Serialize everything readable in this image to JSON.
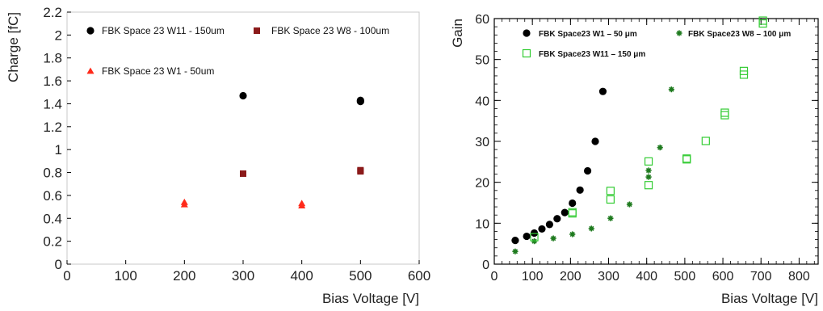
{
  "chart_data": [
    {
      "type": "scatter",
      "title": "",
      "xlabel": "Bias Voltage [V]",
      "ylabel": "Charge [fC]",
      "xlim": [
        0,
        600
      ],
      "ylim": [
        0,
        2.2
      ],
      "xticks": [
        0,
        100,
        200,
        300,
        400,
        500,
        600
      ],
      "yticks": [
        0,
        0.2,
        0.4,
        0.6,
        0.8,
        1,
        1.2,
        1.4,
        1.6,
        1.8,
        2,
        2.2
      ],
      "x_tick_labels": [
        "0",
        "100",
        "200",
        "300",
        "400",
        "500",
        "600"
      ],
      "y_tick_labels": [
        "0",
        "0.2",
        "0.4",
        "0.6",
        "0.8",
        "1",
        "1.2",
        "1.4",
        "1.6",
        "1.8",
        "2",
        "2.2"
      ],
      "grid": false,
      "legend_placement": "top",
      "series": [
        {
          "name": "FBK Space 23 W11 - 150um",
          "marker": "circle",
          "color": "#000000",
          "points": [
            [
              300,
              1.47
            ],
            [
              500,
              1.42
            ],
            [
              500,
              1.43
            ]
          ]
        },
        {
          "name": "FBK Space 23 W8 - 100um",
          "marker": "square",
          "color": "#8b1a1a",
          "points": [
            [
              300,
              0.79
            ],
            [
              500,
              0.81
            ],
            [
              500,
              0.82
            ]
          ]
        },
        {
          "name": "FBK Space 23 W1 - 50um",
          "marker": "triangle",
          "color": "#ff2a1a",
          "points": [
            [
              200,
              0.52
            ],
            [
              200,
              0.54
            ],
            [
              400,
              0.51
            ],
            [
              400,
              0.53
            ]
          ]
        }
      ]
    },
    {
      "type": "scatter",
      "title": "",
      "xlabel": "Bias Voltage [V]",
      "ylabel": "Gain",
      "xlim": [
        0,
        850
      ],
      "ylim": [
        0,
        60
      ],
      "xticks": [
        0,
        100,
        200,
        300,
        400,
        500,
        600,
        700,
        800
      ],
      "yticks": [
        0,
        10,
        20,
        30,
        40,
        50,
        60
      ],
      "x_tick_labels": [
        "0",
        "100",
        "200",
        "300",
        "400",
        "500",
        "600",
        "700",
        "800"
      ],
      "y_tick_labels": [
        "0",
        "10",
        "20",
        "30",
        "40",
        "50",
        "60"
      ],
      "grid": false,
      "legend_placement": "top",
      "series": [
        {
          "name": "FBK Space23 W1 – 50 μm",
          "marker": "circle",
          "color": "#000000",
          "points": [
            [
              55,
              5.8
            ],
            [
              85,
              6.8
            ],
            [
              105,
              7.6
            ],
            [
              125,
              8.6
            ],
            [
              145,
              9.7
            ],
            [
              165,
              11.1
            ],
            [
              185,
              12.6
            ],
            [
              205,
              14.9
            ],
            [
              225,
              18.1
            ],
            [
              245,
              22.8
            ],
            [
              265,
              30.0
            ],
            [
              285,
              42.2
            ]
          ]
        },
        {
          "name": "FBK Space23 W8 – 100 μm",
          "marker": "star",
          "color": "#1e7a1e",
          "points": [
            [
              55,
              3.1
            ],
            [
              105,
              5.6
            ],
            [
              155,
              6.3
            ],
            [
              205,
              7.3
            ],
            [
              255,
              8.7
            ],
            [
              305,
              11.2
            ],
            [
              355,
              14.6
            ],
            [
              405,
              21.3
            ],
            [
              405,
              22.9
            ],
            [
              435,
              28.5
            ],
            [
              465,
              42.7
            ]
          ]
        },
        {
          "name": "FBK Space23 W11 – 150 μm",
          "marker": "open-square",
          "color": "#33cc33",
          "points": [
            [
              105,
              6.6
            ],
            [
              205,
              12.4
            ],
            [
              205,
              12.7
            ],
            [
              305,
              15.8
            ],
            [
              305,
              17.9
            ],
            [
              405,
              19.3
            ],
            [
              405,
              25.1
            ],
            [
              505,
              25.6
            ],
            [
              505,
              25.8
            ],
            [
              555,
              30.1
            ],
            [
              605,
              36.4
            ],
            [
              605,
              37.0
            ],
            [
              655,
              46.3
            ],
            [
              655,
              47.2
            ],
            [
              705,
              58.8
            ],
            [
              705,
              59.5
            ]
          ]
        }
      ]
    }
  ]
}
